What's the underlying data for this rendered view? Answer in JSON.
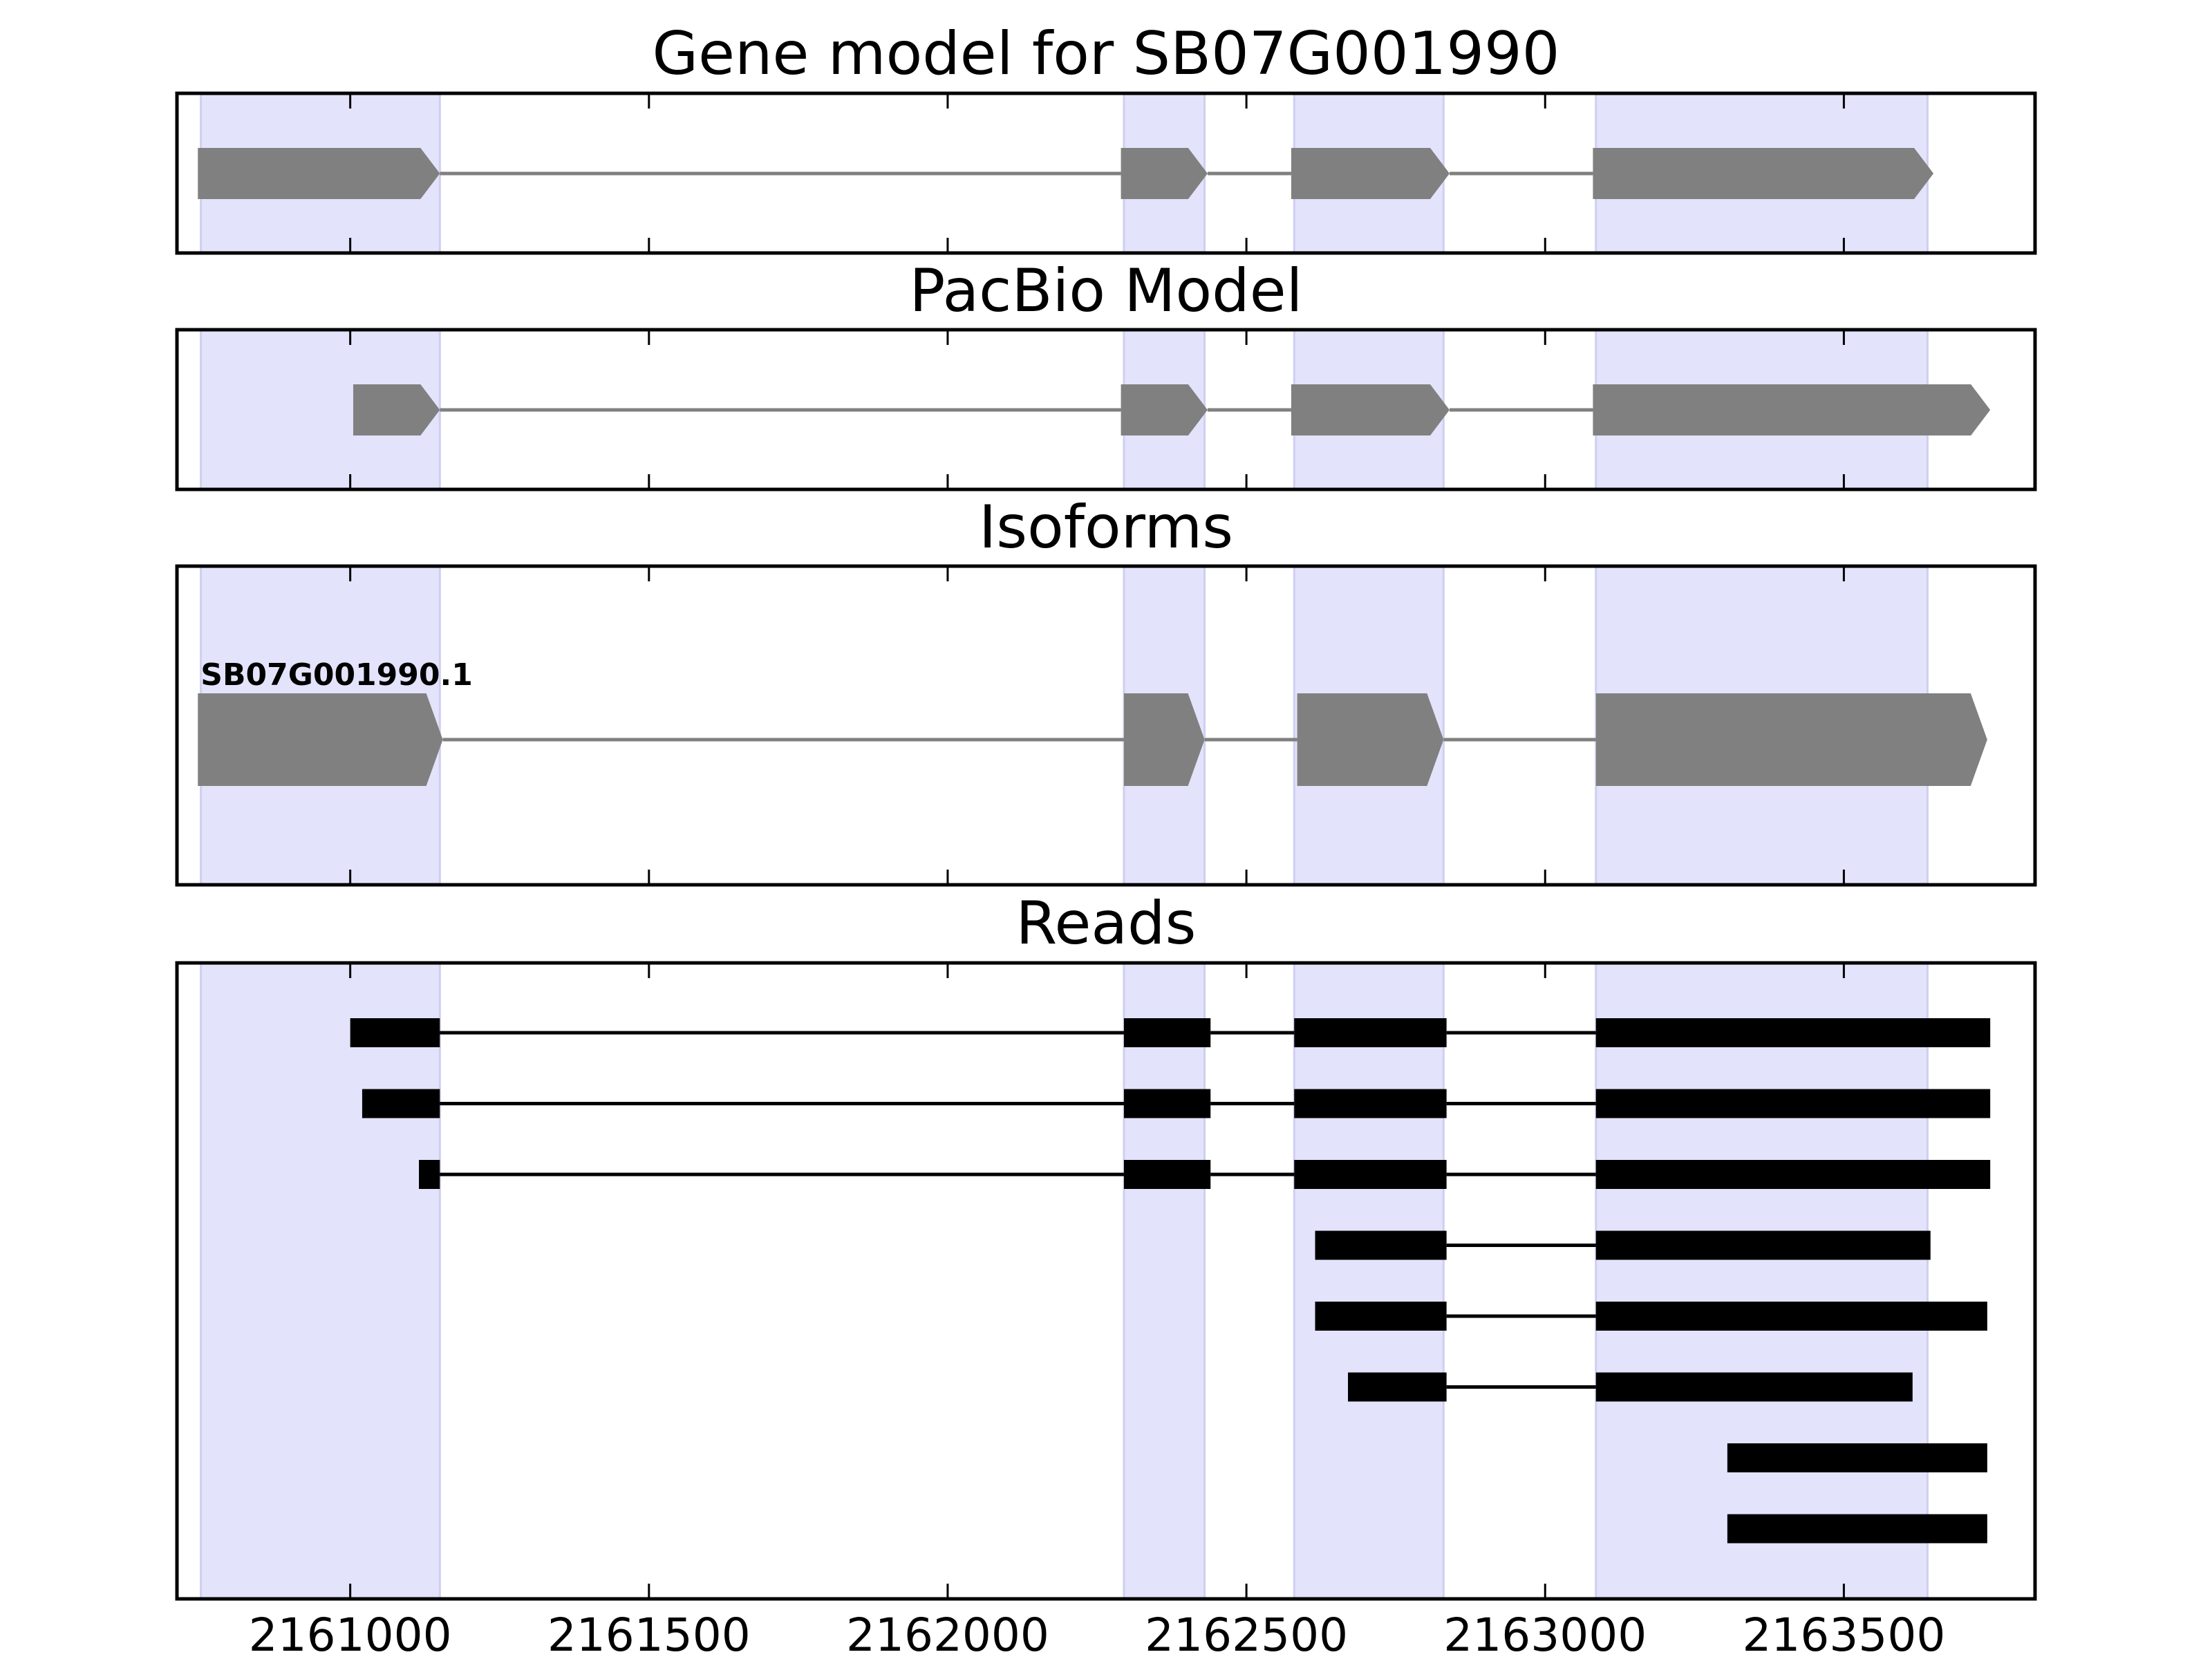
{
  "chart_data": {
    "type": "gene-structure",
    "x_ticks": [
      2161000,
      2161500,
      2162000,
      2162500,
      2163000,
      2163500
    ],
    "xlim": [
      2160710,
      2163820
    ],
    "highlight_regions": [
      [
        2160750,
        2161150
      ],
      [
        2162295,
        2162430
      ],
      [
        2162580,
        2162830
      ],
      [
        2163085,
        2163640
      ]
    ],
    "panels": [
      {
        "title": "Gene model for SB07G001990",
        "style": "gene",
        "tracks": [
          {
            "label": "",
            "exons": [
              [
                2160745,
                2161150
              ],
              [
                2162290,
                2162435
              ],
              [
                2162575,
                2162840
              ],
              [
                2163080,
                2163650
              ]
            ]
          }
        ]
      },
      {
        "title": "PacBio Model",
        "style": "gene",
        "tracks": [
          {
            "label": "",
            "exons": [
              [
                2161005,
                2161150
              ],
              [
                2162290,
                2162435
              ],
              [
                2162575,
                2162840
              ],
              [
                2163080,
                2163745
              ]
            ]
          }
        ]
      },
      {
        "title": "Isoforms",
        "style": "gene",
        "tracks": [
          {
            "label": "SB07G001990.1",
            "exons": [
              [
                2160745,
                2161155
              ],
              [
                2162295,
                2162430
              ],
              [
                2162585,
                2162830
              ],
              [
                2163085,
                2163740
              ]
            ]
          }
        ]
      },
      {
        "title": "Reads",
        "style": "read",
        "tracks": [
          {
            "exons": [
              [
                2161000,
                2161150
              ],
              [
                2162295,
                2162440
              ],
              [
                2162580,
                2162835
              ],
              [
                2163085,
                2163745
              ]
            ]
          },
          {
            "exons": [
              [
                2161020,
                2161150
              ],
              [
                2162295,
                2162440
              ],
              [
                2162580,
                2162835
              ],
              [
                2163085,
                2163745
              ]
            ]
          },
          {
            "exons": [
              [
                2161115,
                2161150
              ],
              [
                2162295,
                2162440
              ],
              [
                2162580,
                2162835
              ],
              [
                2163085,
                2163745
              ]
            ]
          },
          {
            "exons": [
              [
                2162615,
                2162835
              ],
              [
                2163085,
                2163645
              ]
            ]
          },
          {
            "exons": [
              [
                2162615,
                2162835
              ],
              [
                2163085,
                2163740
              ]
            ]
          },
          {
            "exons": [
              [
                2162670,
                2162835
              ],
              [
                2163085,
                2163615
              ]
            ]
          },
          {
            "exons": [
              [
                2163305,
                2163740
              ]
            ]
          },
          {
            "exons": [
              [
                2163305,
                2163740
              ]
            ]
          }
        ]
      }
    ],
    "colors": {
      "highlight": "#e3e3fc",
      "highlight_edge": "#cfcff0",
      "gene_exon": "#808080",
      "gene_intron": "#808080",
      "read": "#000000"
    }
  }
}
